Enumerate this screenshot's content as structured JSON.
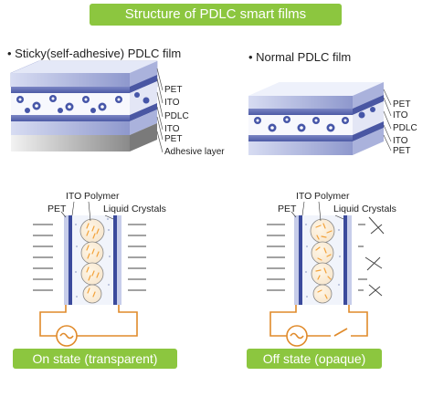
{
  "title": "Structure of PDLC smart films",
  "sticky": {
    "heading": "• Sticky(self-adhesive) PDLC film",
    "layers": [
      "PET",
      "ITO",
      "PDLC",
      "ITO",
      "PET",
      "Adhesive layer"
    ]
  },
  "normal": {
    "heading": "• Normal PDLC film",
    "layers": [
      "PET",
      "ITO",
      "PDLC",
      "ITO",
      "PET"
    ]
  },
  "on_state": {
    "labels": {
      "ito": "ITO",
      "polymer": "Polymer",
      "pet": "PET",
      "liquid_crystals": "Liquid Crystals"
    },
    "caption": "On state (transparent)"
  },
  "off_state": {
    "labels": {
      "ito": "ITO",
      "polymer": "Polymer",
      "pet": "PET",
      "liquid_crystals": "Liquid Crystals"
    },
    "caption": "Off state (opaque)"
  },
  "colors": {
    "accent_green": "#8cc63f",
    "film_blue": "#3b4a9c",
    "film_light": "#cfd6ee",
    "wire_orange": "#e08a2a",
    "droplet_orange": "#f3a23a"
  }
}
